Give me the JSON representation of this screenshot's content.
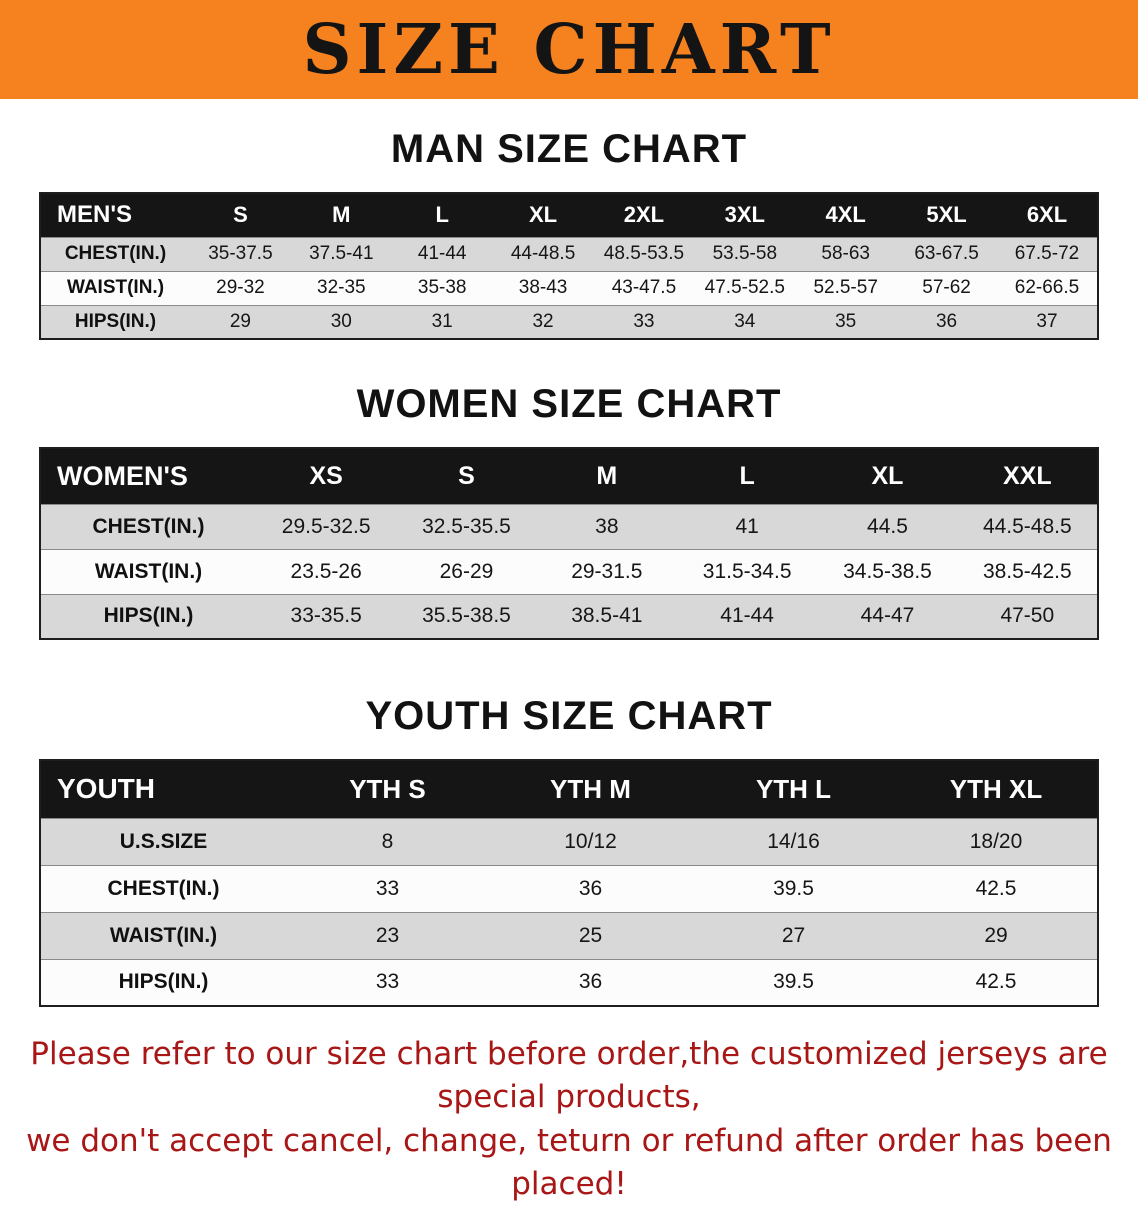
{
  "banner": {
    "title": "SIZE CHART"
  },
  "colors": {
    "banner_bg": "#f5821f",
    "banner_text": "#141414",
    "table_header_bg": "#151515",
    "table_header_text": "#ffffff",
    "row_shaded_bg": "#d8d8d8",
    "row_plain_bg": "#fcfcfc",
    "disclaimer_text": "#a81616"
  },
  "chart_data": [
    {
      "type": "table",
      "title": "MAN SIZE CHART",
      "columns": [
        "MEN'S",
        "S",
        "M",
        "L",
        "XL",
        "2XL",
        "3XL",
        "4XL",
        "5XL",
        "6XL"
      ],
      "rows": [
        {
          "label": "CHEST(IN.)",
          "values": [
            "35-37.5",
            "37.5-41",
            "41-44",
            "44-48.5",
            "48.5-53.5",
            "53.5-58",
            "58-63",
            "63-67.5",
            "67.5-72"
          ]
        },
        {
          "label": "WAIST(IN.)",
          "values": [
            "29-32",
            "32-35",
            "35-38",
            "38-43",
            "43-47.5",
            "47.5-52.5",
            "52.5-57",
            "57-62",
            "62-66.5"
          ]
        },
        {
          "label": "HIPS(IN.)",
          "values": [
            "29",
            "30",
            "31",
            "32",
            "33",
            "34",
            "35",
            "36",
            "37"
          ]
        }
      ]
    },
    {
      "type": "table",
      "title": "WOMEN SIZE CHART",
      "columns": [
        "WOMEN'S",
        "XS",
        "S",
        "M",
        "L",
        "XL",
        "XXL"
      ],
      "rows": [
        {
          "label": "CHEST(IN.)",
          "values": [
            "29.5-32.5",
            "32.5-35.5",
            "38",
            "41",
            "44.5",
            "44.5-48.5"
          ]
        },
        {
          "label": "WAIST(IN.)",
          "values": [
            "23.5-26",
            "26-29",
            "29-31.5",
            "31.5-34.5",
            "34.5-38.5",
            "38.5-42.5"
          ]
        },
        {
          "label": "HIPS(IN.)",
          "values": [
            "33-35.5",
            "35.5-38.5",
            "38.5-41",
            "41-44",
            "44-47",
            "47-50"
          ]
        }
      ]
    },
    {
      "type": "table",
      "title": "YOUTH SIZE CHART",
      "columns": [
        "YOUTH",
        "YTH S",
        "YTH M",
        "YTH L",
        "YTH XL"
      ],
      "rows": [
        {
          "label": "U.S.SIZE",
          "values": [
            "8",
            "10/12",
            "14/16",
            "18/20"
          ]
        },
        {
          "label": "CHEST(IN.)",
          "values": [
            "33",
            "36",
            "39.5",
            "42.5"
          ]
        },
        {
          "label": "WAIST(IN.)",
          "values": [
            "23",
            "25",
            "27",
            "29"
          ]
        },
        {
          "label": "HIPS(IN.)",
          "values": [
            "33",
            "36",
            "39.5",
            "42.5"
          ]
        }
      ]
    }
  ],
  "disclaimer": {
    "line1": "Please refer to our size chart before order,the customized jerseys are special products,",
    "line2": "we don't accept cancel, change, teturn or refund after order has been placed!"
  }
}
